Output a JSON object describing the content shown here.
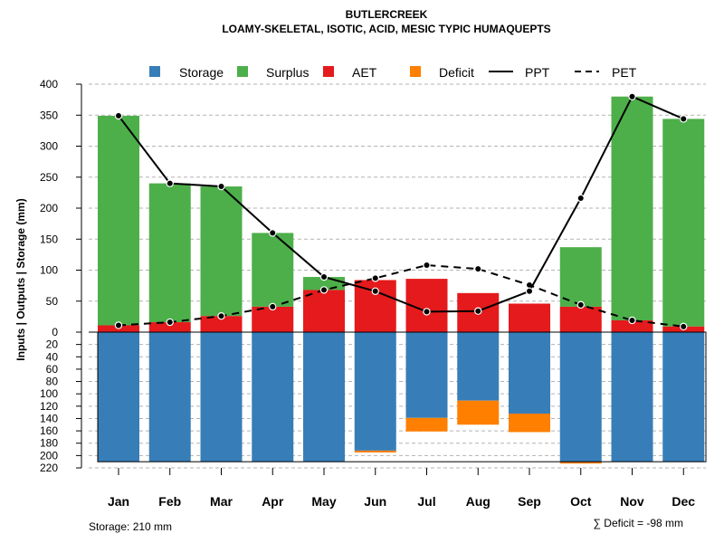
{
  "chart_data": {
    "type": "bar",
    "title": "BUTLERCREEK",
    "subtitle": "LOAMY-SKELETAL, ISOTIC, ACID, MESIC TYPIC HUMAQUEPTS",
    "ylabel": "Inputs | Outputs | Storage    (mm)",
    "categories": [
      "Jan",
      "Feb",
      "Mar",
      "Apr",
      "May",
      "Jun",
      "Jul",
      "Aug",
      "Sep",
      "Oct",
      "Nov",
      "Dec"
    ],
    "ylim_top": [
      0,
      400
    ],
    "yticks_top": [
      0,
      50,
      100,
      150,
      200,
      250,
      300,
      350,
      400
    ],
    "ylim_bottom": [
      0,
      220
    ],
    "yticks_bottom": [
      0,
      20,
      40,
      60,
      80,
      100,
      120,
      140,
      160,
      180,
      200,
      220
    ],
    "legend": {
      "storage": "Storage",
      "surplus": "Surplus",
      "aet": "AET",
      "deficit": "Deficit",
      "ppt": "PPT",
      "pet": "PET"
    },
    "series": {
      "aet": [
        11,
        16,
        26,
        41,
        68,
        84,
        86,
        63,
        46,
        41,
        19,
        9
      ],
      "surplus": [
        338,
        224,
        209,
        119,
        21,
        0,
        0,
        0,
        0,
        96,
        361,
        335
      ],
      "ppt": [
        349,
        240,
        235,
        160,
        89,
        66,
        33,
        34,
        66,
        216,
        380,
        344
      ],
      "pet": [
        11,
        16,
        26,
        41,
        68,
        87,
        108,
        102,
        76,
        44,
        19,
        9
      ],
      "storage": [
        210,
        210,
        210,
        210,
        210,
        192,
        139,
        111,
        132,
        210,
        210,
        210
      ],
      "deficit": [
        0,
        0,
        0,
        0,
        0,
        3,
        22,
        39,
        30,
        3,
        0,
        0
      ]
    },
    "colors": {
      "storage": "#377EB8",
      "surplus": "#4DAF4A",
      "aet": "#E41A1C",
      "deficit": "#FF7F00",
      "ppt": "#000000",
      "pet": "#000000"
    },
    "storage_note": "Storage: 210 mm",
    "deficit_note": "∑ Deficit = -98 mm"
  }
}
